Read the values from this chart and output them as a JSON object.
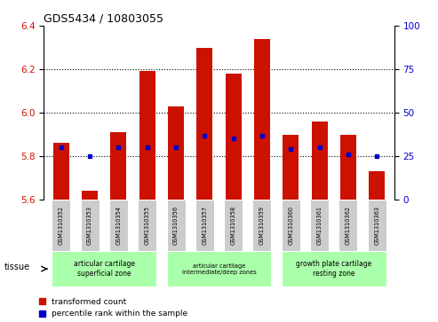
{
  "title": "GDS5434 / 10803055",
  "samples": [
    "GSM1310352",
    "GSM1310353",
    "GSM1310354",
    "GSM1310355",
    "GSM1310356",
    "GSM1310357",
    "GSM1310358",
    "GSM1310359",
    "GSM1310360",
    "GSM1310361",
    "GSM1310362",
    "GSM1310363"
  ],
  "red_values": [
    5.86,
    5.64,
    5.91,
    6.19,
    6.03,
    6.3,
    6.18,
    6.34,
    5.9,
    5.96,
    5.9,
    5.73
  ],
  "blue_percentiles": [
    30,
    25,
    30,
    30,
    30,
    37,
    35,
    37,
    29,
    30,
    26,
    25
  ],
  "ylim_left": [
    5.6,
    6.4
  ],
  "ylim_right": [
    0,
    100
  ],
  "yticks_left": [
    5.6,
    5.8,
    6.0,
    6.2,
    6.4
  ],
  "yticks_right": [
    0,
    25,
    50,
    75,
    100
  ],
  "group_labels": [
    "articular cartilage\nsuperficial zone",
    "articular cartilage\nintermediate/deep zones",
    "growth plate cartilage\nresting zone"
  ],
  "group_starts": [
    0,
    4,
    8
  ],
  "group_ends": [
    3,
    7,
    11
  ],
  "group_color": "#aaffaa",
  "sample_box_color": "#cccccc",
  "bar_color": "#cc1100",
  "blue_color": "#0000cc",
  "legend_red": "transformed count",
  "legend_blue": "percentile rank within the sample",
  "bar_width": 0.55,
  "base": 5.6
}
